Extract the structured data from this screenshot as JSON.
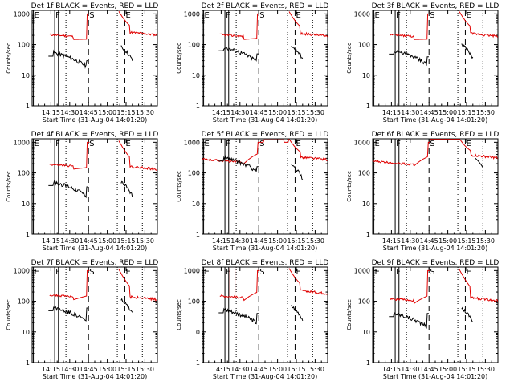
{
  "chart_data": [
    {
      "type": "line",
      "title": "Det 1f BLACK = Events, RED = LLD",
      "xlabel": "Start Time (31-Aug-04 14:01:20)",
      "ylabel": "Counts/sec",
      "x_ticks": [
        "14:15",
        "14:30",
        "14:45",
        "15:00",
        "15:15",
        "15:30"
      ],
      "y_ticks": [
        "1",
        "10",
        "100",
        "1000"
      ],
      "y_scale": "log",
      "ylim": [
        1,
        1000
      ],
      "markers": [
        {
          "label": "E",
          "t": "14:01"
        },
        {
          "label": "F",
          "t": "14:18"
        },
        {
          "label": "S",
          "t": "14:45"
        },
        {
          "label": "E",
          "t": "15:14"
        }
      ],
      "series": [
        {
          "name": "Events",
          "color": "#000000",
          "level": "mid"
        },
        {
          "name": "LLD",
          "color": "#e00000",
          "level": "high"
        }
      ]
    },
    {
      "type": "line",
      "title": "Det 2f BLACK = Events, RED = LLD",
      "xlabel": "Start Time (31-Aug-04 14:01:20)",
      "ylabel": "Counts/sec",
      "x_ticks": [
        "14:15",
        "14:30",
        "14:45",
        "15:00",
        "15:15",
        "15:30"
      ],
      "y_ticks": [
        "1",
        "10",
        "100",
        "1000"
      ],
      "y_scale": "log",
      "ylim": [
        1,
        1000
      ],
      "markers": [
        {
          "label": "E",
          "t": "14:01"
        },
        {
          "label": "F",
          "t": "14:18"
        },
        {
          "label": "S",
          "t": "14:45"
        },
        {
          "label": "E",
          "t": "15:14"
        }
      ],
      "series": [
        {
          "name": "Events",
          "color": "#000000"
        },
        {
          "name": "LLD",
          "color": "#e00000"
        }
      ]
    },
    {
      "type": "line",
      "title": "Det 3f BLACK = Events, RED = LLD",
      "xlabel": "Start Time (31-Aug-04 14:01:20)",
      "ylabel": "Counts/sec",
      "x_ticks": [
        "14:15",
        "14:30",
        "14:45",
        "15:00",
        "15:15",
        "15:30"
      ],
      "y_ticks": [
        "1",
        "10",
        "100",
        "1000"
      ],
      "y_scale": "log",
      "ylim": [
        1,
        1000
      ],
      "markers": [
        {
          "label": "E",
          "t": "14:01"
        },
        {
          "label": "F",
          "t": "14:18"
        },
        {
          "label": "S",
          "t": "14:45"
        },
        {
          "label": "E",
          "t": "15:14"
        }
      ],
      "series": [
        {
          "name": "Events",
          "color": "#000000"
        },
        {
          "name": "LLD",
          "color": "#e00000"
        }
      ]
    },
    {
      "type": "line",
      "title": "Det 4f BLACK = Events, RED = LLD",
      "xlabel": "Start Time (31-Aug-04 14:01:20)",
      "ylabel": "Counts/sec",
      "x_ticks": [
        "14:15",
        "14:30",
        "14:45",
        "15:00",
        "15:15",
        "15:30"
      ],
      "y_ticks": [
        "1",
        "10",
        "100",
        "1000"
      ],
      "y_scale": "log",
      "ylim": [
        1,
        1000
      ],
      "markers": [
        {
          "label": "E",
          "t": "14:01"
        },
        {
          "label": "F",
          "t": "14:18"
        },
        {
          "label": "S",
          "t": "14:45"
        },
        {
          "label": "E",
          "t": "15:14"
        }
      ],
      "series": [
        {
          "name": "Events",
          "color": "#000000"
        },
        {
          "name": "LLD",
          "color": "#e00000"
        }
      ]
    },
    {
      "type": "line",
      "title": "Det 5f BLACK = Events, RED = LLD",
      "xlabel": "Start Time (31-Aug-04 14:01:20)",
      "ylabel": "Counts/sec",
      "x_ticks": [
        "14:15",
        "14:30",
        "14:45",
        "15:00",
        "15:15",
        "15:30"
      ],
      "y_ticks": [
        "1",
        "10",
        "100",
        "1000"
      ],
      "y_scale": "log",
      "ylim": [
        1,
        1000
      ],
      "markers": [
        {
          "label": "E",
          "t": "14:01"
        },
        {
          "label": "F",
          "t": "14:18"
        },
        {
          "label": "S",
          "t": "14:45"
        },
        {
          "label": "E",
          "t": "15:14"
        }
      ],
      "series": [
        {
          "name": "Events",
          "color": "#000000"
        },
        {
          "name": "LLD",
          "color": "#e00000"
        }
      ]
    },
    {
      "type": "line",
      "title": "Det 6f BLACK = Events, RED = LLD",
      "xlabel": "Start Time (31-Aug-04 14:01:20)",
      "ylabel": "Counts/sec",
      "x_ticks": [
        "14:15",
        "14:30",
        "14:45",
        "15:00",
        "15:15",
        "15:30"
      ],
      "y_ticks": [
        "1",
        "10",
        "100",
        "1000"
      ],
      "y_scale": "log",
      "ylim": [
        1,
        1000
      ],
      "markers": [
        {
          "label": "E",
          "t": "14:01"
        },
        {
          "label": "F",
          "t": "14:18"
        },
        {
          "label": "S",
          "t": "14:45"
        },
        {
          "label": "E",
          "t": "15:14"
        }
      ],
      "series": [
        {
          "name": "Events",
          "color": "#000000"
        },
        {
          "name": "LLD",
          "color": "#e00000"
        }
      ]
    },
    {
      "type": "line",
      "title": "Det 7f BLACK = Events, RED = LLD",
      "xlabel": "Start Time (31-Aug-04 14:01:20)",
      "ylabel": "Counts/sec",
      "x_ticks": [
        "14:15",
        "14:30",
        "14:45",
        "15:00",
        "15:15",
        "15:30"
      ],
      "y_ticks": [
        "1",
        "10",
        "100",
        "1000"
      ],
      "y_scale": "log",
      "ylim": [
        1,
        1000
      ],
      "markers": [
        {
          "label": "E",
          "t": "14:01"
        },
        {
          "label": "F",
          "t": "14:18"
        },
        {
          "label": "S",
          "t": "14:45"
        },
        {
          "label": "E",
          "t": "15:14"
        }
      ],
      "series": [
        {
          "name": "Events",
          "color": "#000000"
        },
        {
          "name": "LLD",
          "color": "#e00000"
        }
      ]
    },
    {
      "type": "line",
      "title": "Det 8f BLACK = Events, RED = LLD",
      "xlabel": "Start Time (31-Aug-04 14:01:20)",
      "ylabel": "Counts/sec",
      "x_ticks": [
        "14:15",
        "14:30",
        "14:45",
        "15:00",
        "15:15",
        "15:30"
      ],
      "y_ticks": [
        "1",
        "10",
        "100",
        "1000"
      ],
      "y_scale": "log",
      "ylim": [
        1,
        1000
      ],
      "markers": [
        {
          "label": "E",
          "t": "14:01"
        },
        {
          "label": "F",
          "t": "14:18"
        },
        {
          "label": "S",
          "t": "14:45"
        },
        {
          "label": "E",
          "t": "15:14"
        }
      ],
      "series": [
        {
          "name": "Events",
          "color": "#000000"
        },
        {
          "name": "LLD",
          "color": "#e00000"
        }
      ]
    },
    {
      "type": "line",
      "title": "Det 9f BLACK = Events, RED = LLD",
      "xlabel": "Start Time (31-Aug-04 14:01:20)",
      "ylabel": "Counts/sec",
      "x_ticks": [
        "14:15",
        "14:30",
        "14:45",
        "15:00",
        "15:15",
        "15:30"
      ],
      "y_ticks": [
        "1",
        "10",
        "100",
        "1000"
      ],
      "y_scale": "log",
      "ylim": [
        1,
        1000
      ],
      "markers": [
        {
          "label": "E",
          "t": "14:01"
        },
        {
          "label": "F",
          "t": "14:18"
        },
        {
          "label": "S",
          "t": "14:45"
        },
        {
          "label": "E",
          "t": "15:14"
        }
      ],
      "series": [
        {
          "name": "Events",
          "color": "#000000"
        },
        {
          "name": "LLD",
          "color": "#e00000"
        }
      ]
    }
  ],
  "colors": {
    "events": "#000000",
    "lld": "#e00000",
    "background": "#ffffff"
  }
}
